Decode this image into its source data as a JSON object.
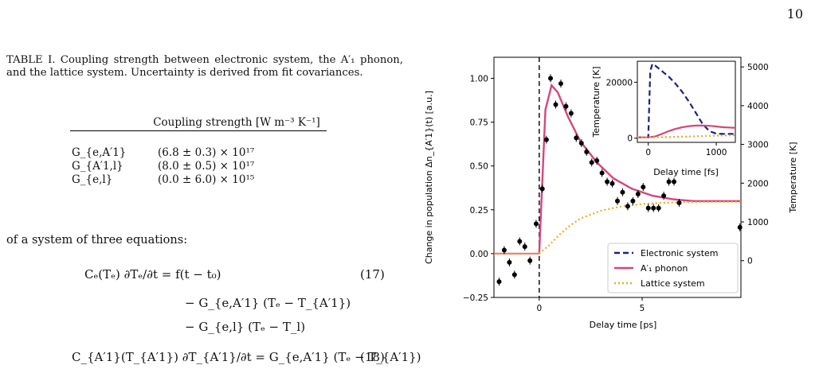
{
  "page_number": "10",
  "caption": "TABLE I. Coupling strength between electronic system, the A′₁ phonon, and the lattice system. Uncertainty is derived from fit covariances.",
  "table": {
    "header": "Coupling strength [W m⁻³ K⁻¹]",
    "rows": [
      {
        "symbol": "G_{e,A′1}",
        "value": "(6.8 ± 0.3) × 10¹⁷"
      },
      {
        "symbol": "G_{A′1,l}",
        "value": "(8.0 ± 0.5) × 10¹⁷"
      },
      {
        "symbol": "G_{e,l}",
        "value": "(0.0 ± 6.0) × 10¹⁵"
      }
    ]
  },
  "body_text": "of a system of three equations:",
  "equations": {
    "line1": "Cₑ(Tₑ) ∂Tₑ/∂t = f(t − t₀)",
    "line1_number": "(17)",
    "line2": "− G_{e,A′1} (Tₑ − T_{A′1})",
    "line3": "− G_{e,l} (Tₑ − T_l)",
    "line4": "C_{A′1}(T_{A′1}) ∂T_{A′1}/∂t = G_{e,A′1} (Tₑ − T_{A′1})",
    "line4_number": "(18)"
  },
  "chart_data": {
    "type": "line",
    "xlabel": "Delay time [ps]",
    "ylabel": "Change in population Δn_{A′1}(t) [a.u.]",
    "y2label": "Temperature [K]",
    "xlim": [
      -2.2,
      9.8
    ],
    "ylim": [
      -0.25,
      1.12
    ],
    "y2lim": [
      -950,
      5250
    ],
    "x_ticks": [
      "0",
      "5"
    ],
    "y_ticks": [
      "−0.25",
      "0.00",
      "0.25",
      "0.50",
      "0.75",
      "1.00"
    ],
    "y2_ticks": [
      "0",
      "1000",
      "2000",
      "3000",
      "4000",
      "5000"
    ],
    "legend_position": "bottom-right",
    "legend": [
      {
        "name": "Electronic system",
        "color": "#1a237e",
        "dash": "dashed"
      },
      {
        "name": "A′₁ phonon",
        "color": "#d6457e",
        "dash": "solid"
      },
      {
        "name": "Lattice system",
        "color": "#f5a623",
        "dash": "dotted"
      }
    ],
    "t0_marker": 0,
    "data_points": [
      {
        "x": -1.95,
        "y": -0.16
      },
      {
        "x": -1.7,
        "y": 0.02
      },
      {
        "x": -1.45,
        "y": -0.05
      },
      {
        "x": -1.2,
        "y": -0.12
      },
      {
        "x": -0.95,
        "y": 0.07
      },
      {
        "x": -0.7,
        "y": 0.04
      },
      {
        "x": -0.45,
        "y": -0.04
      },
      {
        "x": -0.15,
        "y": 0.17
      },
      {
        "x": 0.15,
        "y": 0.37
      },
      {
        "x": 0.35,
        "y": 0.65
      },
      {
        "x": 0.55,
        "y": 1.0
      },
      {
        "x": 0.8,
        "y": 0.85
      },
      {
        "x": 1.05,
        "y": 0.97
      },
      {
        "x": 1.3,
        "y": 0.84
      },
      {
        "x": 1.55,
        "y": 0.8
      },
      {
        "x": 1.8,
        "y": 0.66
      },
      {
        "x": 2.05,
        "y": 0.63
      },
      {
        "x": 2.3,
        "y": 0.58
      },
      {
        "x": 2.55,
        "y": 0.52
      },
      {
        "x": 2.8,
        "y": 0.53
      },
      {
        "x": 3.05,
        "y": 0.46
      },
      {
        "x": 3.3,
        "y": 0.41
      },
      {
        "x": 3.55,
        "y": 0.4
      },
      {
        "x": 3.8,
        "y": 0.3
      },
      {
        "x": 4.05,
        "y": 0.35
      },
      {
        "x": 4.3,
        "y": 0.27
      },
      {
        "x": 4.55,
        "y": 0.3
      },
      {
        "x": 4.8,
        "y": 0.34
      },
      {
        "x": 5.05,
        "y": 0.38
      },
      {
        "x": 5.3,
        "y": 0.26
      },
      {
        "x": 5.55,
        "y": 0.26
      },
      {
        "x": 5.8,
        "y": 0.26
      },
      {
        "x": 6.05,
        "y": 0.33
      },
      {
        "x": 6.3,
        "y": 0.41
      },
      {
        "x": 6.55,
        "y": 0.41
      },
      {
        "x": 6.8,
        "y": 0.29
      },
      {
        "x": 9.75,
        "y": 0.15
      }
    ],
    "series": [
      {
        "name": "A′₁ phonon",
        "axis": "left",
        "x": [
          0,
          0.3,
          0.6,
          0.9,
          1.4,
          2.0,
          2.8,
          3.6,
          4.5,
          5.5,
          6.5,
          7.5,
          8.5,
          9.8
        ],
        "y": [
          0,
          0.82,
          0.96,
          0.92,
          0.78,
          0.64,
          0.52,
          0.43,
          0.37,
          0.33,
          0.31,
          0.3,
          0.3,
          0.3
        ]
      },
      {
        "name": "Lattice system",
        "axis": "left",
        "x": [
          0,
          0.5,
          1.0,
          1.5,
          2.0,
          3.0,
          4.0,
          5.0,
          6.0,
          7.0,
          8.0,
          9.8
        ],
        "y": [
          0,
          0.05,
          0.11,
          0.16,
          0.2,
          0.245,
          0.27,
          0.283,
          0.29,
          0.293,
          0.295,
          0.296
        ]
      }
    ],
    "inset": {
      "xlabel": "Delay time [fs]",
      "ylabel": "Temperature [K]",
      "xlim": [
        -160,
        1280
      ],
      "ylim": [
        -1500,
        27500
      ],
      "x_ticks": [
        "0",
        "1000"
      ],
      "y_ticks": [
        "0",
        "20000"
      ],
      "series": [
        {
          "name": "Electronic system",
          "x": [
            -160,
            0,
            30,
            60,
            100,
            200,
            300,
            400,
            500,
            600,
            700,
            800,
            900,
            1000,
            1100,
            1280
          ],
          "y": [
            300,
            300,
            24000,
            26500,
            26000,
            24000,
            22000,
            19500,
            16500,
            13000,
            9000,
            5000,
            2500,
            1600,
            1500,
            1500
          ]
        },
        {
          "name": "A′₁ phonon",
          "x": [
            -160,
            0,
            100,
            200,
            300,
            400,
            500,
            600,
            700,
            800,
            900,
            1000,
            1100,
            1280
          ],
          "y": [
            300,
            300,
            600,
            1500,
            2500,
            3300,
            3900,
            4300,
            4500,
            4500,
            4400,
            4200,
            3900,
            3700
          ]
        },
        {
          "name": "Lattice system",
          "x": [
            -160,
            0,
            200,
            400,
            600,
            800,
            1000,
            1280
          ],
          "y": [
            300,
            300,
            350,
            450,
            600,
            750,
            900,
            1100
          ]
        }
      ]
    }
  }
}
